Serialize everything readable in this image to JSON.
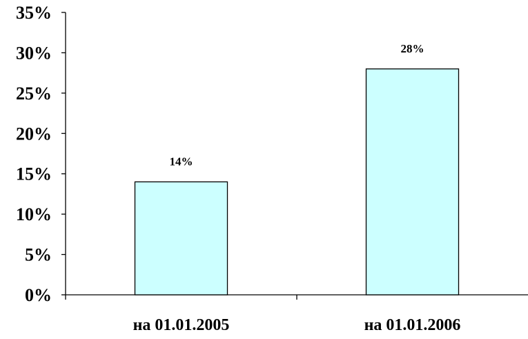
{
  "chart_data": {
    "type": "bar",
    "categories": [
      "на 01.01.2005",
      "на 01.01.2006"
    ],
    "values": [
      14,
      28
    ],
    "data_labels": [
      "14%",
      "28%"
    ],
    "title": "",
    "xlabel": "",
    "ylabel": "",
    "ylim": [
      0,
      35
    ],
    "y_ticks": [
      0,
      5,
      10,
      15,
      20,
      25,
      30,
      35
    ],
    "y_tick_labels": [
      "0%",
      "5%",
      "10%",
      "15%",
      "20%",
      "25%",
      "30%",
      "35%"
    ],
    "grid": false,
    "legend": "none",
    "bar_fill": "#ccffff",
    "bar_stroke": "#000000"
  }
}
